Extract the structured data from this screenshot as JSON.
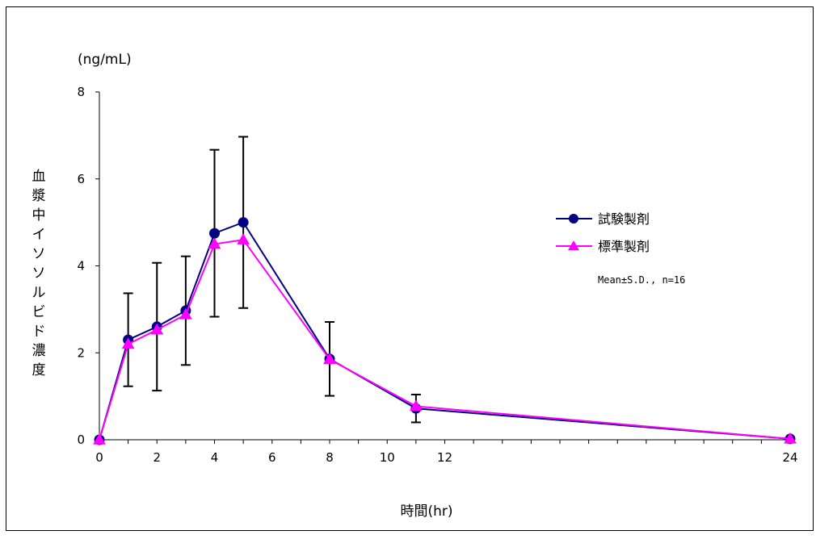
{
  "chart_data": {
    "type": "line",
    "title": "",
    "ylabel": "血漿中イソソルビド濃度",
    "yunit": "(ng/mL)",
    "xlabel": "時間(hr)",
    "x": [
      0,
      1,
      2,
      3,
      4,
      5,
      8,
      11,
      24
    ],
    "xticks": [
      0,
      2,
      4,
      6,
      8,
      10,
      12,
      24
    ],
    "xlim": [
      0,
      24
    ],
    "yticks": [
      0,
      2,
      4,
      6,
      8
    ],
    "ylim": [
      0,
      8
    ],
    "grid": false,
    "legend_position": "right",
    "note": "Mean±S.D., n=16",
    "series": [
      {
        "name": "試験製剤",
        "color": "#000080",
        "marker": "circle",
        "values": [
          0,
          2.3,
          2.6,
          2.97,
          4.75,
          5.0,
          1.86,
          0.72,
          0.02
        ],
        "error": [
          0,
          1.07,
          1.47,
          1.25,
          1.92,
          1.97,
          0.85,
          0.32,
          0
        ]
      },
      {
        "name": "標準製剤",
        "color": "#ff00ff",
        "marker": "triangle",
        "values": [
          0,
          2.2,
          2.53,
          2.88,
          4.5,
          4.6,
          1.85,
          0.77,
          0.02
        ]
      }
    ]
  }
}
